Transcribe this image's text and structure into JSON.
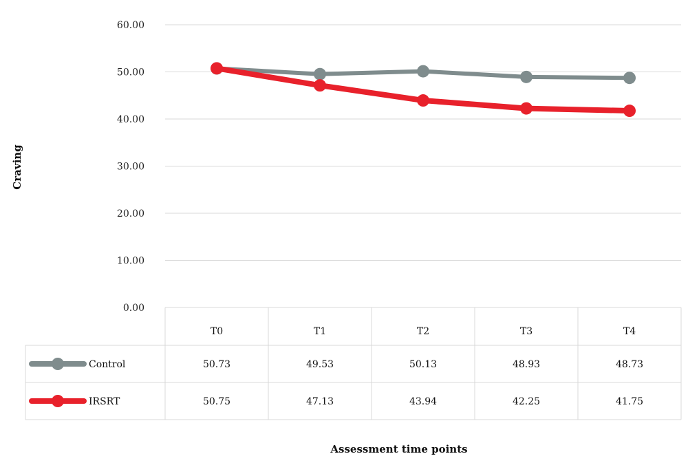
{
  "chart_data": {
    "type": "line",
    "ylabel": "Craving",
    "xlabel": "Assessment time points",
    "ylim": [
      0,
      60
    ],
    "yticks": [
      "0.00",
      "10.00",
      "20.00",
      "30.00",
      "40.00",
      "50.00",
      "60.00"
    ],
    "categories": [
      "T0",
      "T1",
      "T2",
      "T3",
      "T4"
    ],
    "grid": true,
    "legend": "data-table",
    "series": [
      {
        "name": "Control",
        "color": "#7f8c8d",
        "values": [
          50.73,
          49.53,
          50.13,
          48.93,
          48.73
        ],
        "labels": [
          "50.73",
          "49.53",
          "50.13",
          "48.93",
          "48.73"
        ]
      },
      {
        "name": "IRSRT",
        "color": "#e8212b",
        "values": [
          50.75,
          47.13,
          43.94,
          42.25,
          41.75
        ],
        "labels": [
          "50.75",
          "47.13",
          "43.94",
          "42.25",
          "41.75"
        ]
      }
    ]
  }
}
